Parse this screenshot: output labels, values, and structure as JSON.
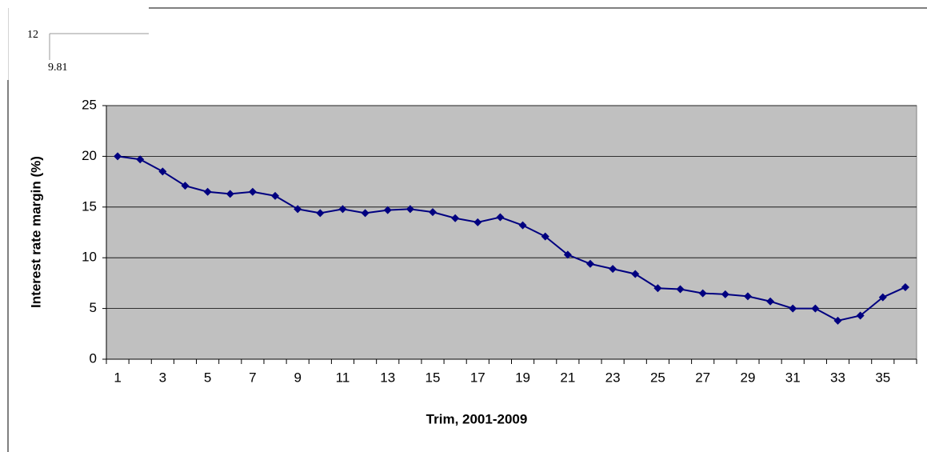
{
  "chart_data": {
    "type": "line",
    "annotations": [
      "12",
      "9.81"
    ],
    "x_label": "Trim, 2001-2009",
    "y_label": "Interest rate margin (%)",
    "categories": [
      "1",
      null,
      "3",
      null,
      "5",
      null,
      "7",
      null,
      "9",
      null,
      "11",
      null,
      "13",
      null,
      "15",
      null,
      "17",
      null,
      "19",
      null,
      "21",
      null,
      "23",
      null,
      "25",
      null,
      "27",
      null,
      "29",
      null,
      "31",
      null,
      "33",
      null,
      "35",
      null
    ],
    "series": [
      {
        "name": "Interest rate margin",
        "color": "#000080",
        "values": [
          20,
          19.7,
          18.5,
          17.1,
          16.5,
          16.3,
          16.5,
          16.1,
          14.8,
          14.4,
          14.8,
          14.4,
          14.7,
          14.8,
          14.5,
          13.9,
          13.5,
          14.0,
          13.2,
          12.1,
          10.3,
          9.4,
          8.9,
          8.4,
          7.0,
          6.9,
          6.5,
          6.4,
          6.2,
          5.7,
          5.0,
          5.0,
          3.8,
          4.3,
          6.1,
          7.1
        ]
      }
    ],
    "ylim": [
      0,
      25
    ],
    "yticks": [
      0,
      5,
      10,
      15,
      20,
      25
    ],
    "grid": true,
    "plot_background": "#c0c0c0"
  }
}
